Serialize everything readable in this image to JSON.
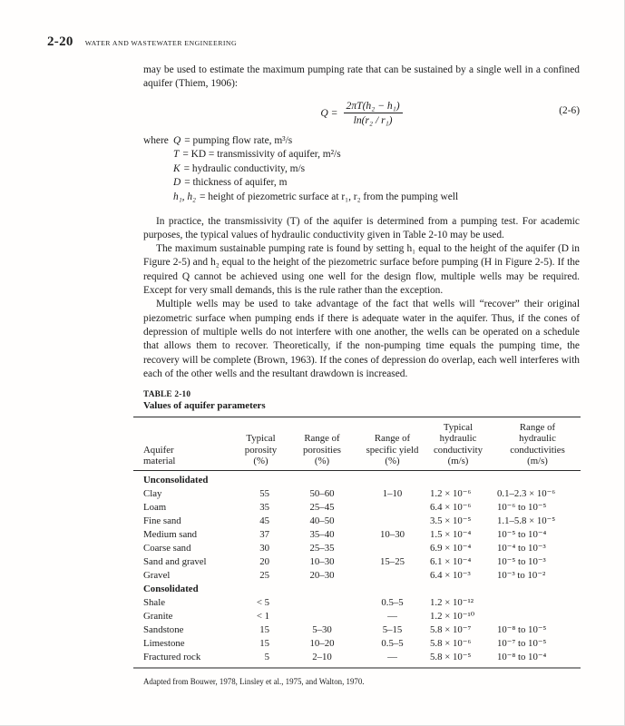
{
  "page": {
    "number": "2-20",
    "running_head": "WATER AND WASTEWATER ENGINEERING"
  },
  "intro": "may be used to estimate the maximum pumping rate that can be sustained by a single well in a confined aquifer (Thiem, 1906):",
  "equation": {
    "lhs": "Q =",
    "numerator": "2πT(h₂ − h₁)",
    "denominator": "ln(r₂ / r₁)",
    "number": "(2-6)"
  },
  "where_list": {
    "intro": "where",
    "items": [
      {
        "var": "Q",
        "def": "= pumping flow rate, m³/s"
      },
      {
        "var": "T",
        "def": "= KD = transmissivity of aquifer, m²/s"
      },
      {
        "var": "K",
        "def": "= hydraulic conductivity, m/s"
      },
      {
        "var": "D",
        "def": "= thickness of aquifer, m"
      },
      {
        "var": "h₁, h₂",
        "def": "= height of piezometric surface at r₁, r₂ from the pumping well"
      }
    ]
  },
  "paragraphs": [
    "In practice, the transmissivity (T) of the aquifer is determined from a pumping test. For academic purposes, the typical values of hydraulic conductivity given in Table 2-10 may be used.",
    "The maximum sustainable pumping rate is found by setting h₁ equal to the height of the aquifer (D in Figure 2-5) and h₂ equal to the height of the piezometric surface before pumping (H in Figure 2-5). If the required Q cannot be achieved using one well for the design flow, multiple wells may be required. Except for very small demands, this is the rule rather than the exception.",
    "Multiple wells may be used to take advantage of the fact that wells will “recover” their original piezometric surface when pumping ends if there is adequate water in the aquifer. Thus, if the cones of depression of multiple wells do not interfere with one another, the wells can be operated on a schedule that allows them to recover. Theoretically, if the non-pumping time equals the pumping time, the recovery will be complete (Brown, 1963). If the cones of depression do overlap, each well interferes with each of the other wells and the resultant drawdown is increased."
  ],
  "table": {
    "label": "TABLE 2-10",
    "title": "Values of aquifer parameters",
    "headers": [
      "Aquifer\nmaterial",
      "Typical\nporosity\n(%)",
      "Range of\nporosities\n(%)",
      "Range of\nspecific yield\n(%)",
      "Typical\nhydraulic\nconductivity\n(m/s)",
      "Range of\nhydraulic\nconductivities\n(m/s)"
    ],
    "rows": [
      {
        "type": "section",
        "label": "Unconsolidated"
      },
      {
        "type": "data",
        "cells": [
          "Clay",
          "55",
          "50–60",
          "1–10",
          "1.2 × 10⁻⁶",
          "0.1–2.3 × 10⁻⁶"
        ]
      },
      {
        "type": "data",
        "cells": [
          "Loam",
          "35",
          "25–45",
          "",
          "6.4 × 10⁻⁶",
          "10⁻⁶ to 10⁻⁵"
        ]
      },
      {
        "type": "data",
        "cells": [
          "Fine sand",
          "45",
          "40–50",
          "",
          "3.5 × 10⁻⁵",
          "1.1–5.8 × 10⁻⁵"
        ]
      },
      {
        "type": "data",
        "cells": [
          "Medium sand",
          "37",
          "35–40",
          "10–30",
          "1.5 × 10⁻⁴",
          "10⁻⁵ to 10⁻⁴"
        ]
      },
      {
        "type": "data",
        "cells": [
          "Coarse sand",
          "30",
          "25–35",
          "",
          "6.9 × 10⁻⁴",
          "10⁻⁴ to 10⁻³"
        ]
      },
      {
        "type": "data",
        "cells": [
          "Sand and gravel",
          "20",
          "10–30",
          "15–25",
          "6.1 × 10⁻⁴",
          "10⁻⁵ to 10⁻³"
        ]
      },
      {
        "type": "data",
        "cells": [
          "Gravel",
          "25",
          "20–30",
          "",
          "6.4 × 10⁻³",
          "10⁻³ to 10⁻²"
        ]
      },
      {
        "type": "section",
        "label": "Consolidated"
      },
      {
        "type": "data",
        "cells": [
          "Shale",
          "< 5",
          "",
          "0.5–5",
          "1.2 × 10⁻¹²",
          ""
        ]
      },
      {
        "type": "data",
        "cells": [
          "Granite",
          "< 1",
          "",
          "—",
          "1.2 × 10⁻¹⁰",
          ""
        ]
      },
      {
        "type": "data",
        "cells": [
          "Sandstone",
          "15",
          "5–30",
          "5–15",
          "5.8 × 10⁻⁷",
          "10⁻⁸ to 10⁻⁵"
        ]
      },
      {
        "type": "data",
        "cells": [
          "Limestone",
          "15",
          "10–20",
          "0.5–5",
          "5.8 × 10⁻⁶",
          "10⁻⁷ to 10⁻⁵"
        ]
      },
      {
        "type": "data",
        "cells": [
          "Fractured rock",
          "5",
          "2–10",
          "—",
          "5.8 × 10⁻⁵",
          "10⁻⁸ to 10⁻⁴"
        ]
      }
    ],
    "footnote": "Adapted from Bouwer, 1978, Linsley et al., 1975, and Walton, 1970."
  }
}
